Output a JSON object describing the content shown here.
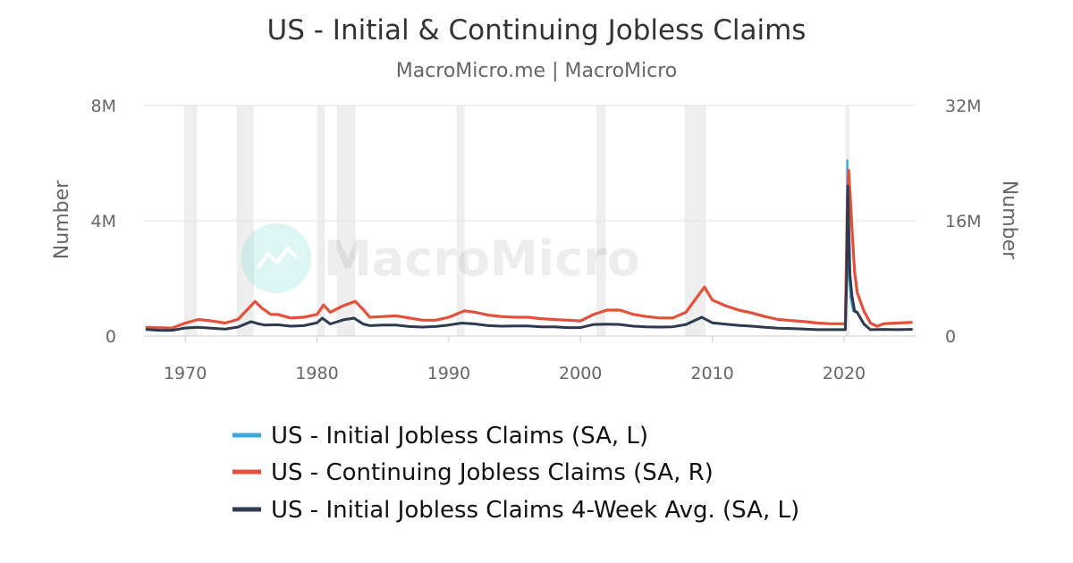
{
  "chart_data": {
    "type": "line",
    "title": "US - Initial & Continuing Jobless Claims",
    "subtitle": "MacroMicro.me | MacroMicro",
    "watermark": "MacroMicro",
    "xlim": [
      1966.8,
      2025.5
    ],
    "x_ticks": [
      1970,
      1980,
      1990,
      2000,
      2010,
      2020
    ],
    "y_left": {
      "label": "Number",
      "ylim": [
        0,
        8000000
      ],
      "ticks": [
        0,
        4000000,
        8000000
      ],
      "tick_labels": [
        "0",
        "4M",
        "8M"
      ]
    },
    "y_right": {
      "label": "Number",
      "ylim": [
        0,
        32000000
      ],
      "ticks": [
        0,
        16000000,
        32000000
      ],
      "tick_labels": [
        "0",
        "16M",
        "32M"
      ]
    },
    "recessions": [
      [
        1969.9,
        1970.9
      ],
      [
        1973.9,
        1975.2
      ],
      [
        1980.0,
        1980.6
      ],
      [
        1981.5,
        1982.9
      ],
      [
        1990.6,
        1991.2
      ],
      [
        2001.2,
        2001.9
      ],
      [
        2007.9,
        2009.5
      ],
      [
        2020.1,
        2020.4
      ]
    ],
    "legend_position": "bottom",
    "series": [
      {
        "name": "US - Initial Jobless Claims (SA, L)",
        "axis": "left",
        "color": "#3da9dc",
        "points": [
          [
            1967.0,
            230000
          ],
          [
            1968.0,
            200000
          ],
          [
            1969.0,
            190000
          ],
          [
            1970.0,
            270000
          ],
          [
            1971.0,
            300000
          ],
          [
            1972.0,
            270000
          ],
          [
            1973.0,
            240000
          ],
          [
            1974.0,
            300000
          ],
          [
            1975.0,
            480000
          ],
          [
            1975.5,
            420000
          ],
          [
            1976.0,
            380000
          ],
          [
            1977.0,
            390000
          ],
          [
            1978.0,
            340000
          ],
          [
            1979.0,
            360000
          ],
          [
            1980.0,
            450000
          ],
          [
            1980.4,
            620000
          ],
          [
            1981.0,
            420000
          ],
          [
            1982.0,
            560000
          ],
          [
            1982.8,
            640000
          ],
          [
            1983.5,
            420000
          ],
          [
            1984.0,
            360000
          ],
          [
            1985.0,
            380000
          ],
          [
            1986.0,
            380000
          ],
          [
            1987.0,
            330000
          ],
          [
            1988.0,
            310000
          ],
          [
            1989.0,
            330000
          ],
          [
            1990.0,
            380000
          ],
          [
            1991.0,
            450000
          ],
          [
            1992.0,
            420000
          ],
          [
            1993.0,
            360000
          ],
          [
            1994.0,
            340000
          ],
          [
            1995.0,
            350000
          ],
          [
            1996.0,
            350000
          ],
          [
            1997.0,
            320000
          ],
          [
            1998.0,
            320000
          ],
          [
            1999.0,
            290000
          ],
          [
            2000.0,
            290000
          ],
          [
            2001.0,
            400000
          ],
          [
            2002.0,
            410000
          ],
          [
            2003.0,
            400000
          ],
          [
            2004.0,
            340000
          ],
          [
            2005.0,
            320000
          ],
          [
            2006.0,
            310000
          ],
          [
            2007.0,
            320000
          ],
          [
            2008.0,
            400000
          ],
          [
            2009.2,
            650000
          ],
          [
            2010.0,
            460000
          ],
          [
            2011.0,
            410000
          ],
          [
            2012.0,
            370000
          ],
          [
            2013.0,
            340000
          ],
          [
            2014.0,
            300000
          ],
          [
            2015.0,
            270000
          ],
          [
            2016.0,
            260000
          ],
          [
            2017.0,
            240000
          ],
          [
            2018.0,
            220000
          ],
          [
            2019.0,
            220000
          ],
          [
            2020.1,
            210000
          ],
          [
            2020.2,
            3300000
          ],
          [
            2020.25,
            6100000
          ],
          [
            2020.3,
            4400000
          ],
          [
            2020.4,
            2000000
          ],
          [
            2020.5,
            1300000
          ],
          [
            2020.7,
            860000
          ],
          [
            2021.0,
            800000
          ],
          [
            2021.5,
            400000
          ],
          [
            2022.0,
            220000
          ],
          [
            2023.0,
            230000
          ],
          [
            2024.0,
            220000
          ],
          [
            2025.2,
            230000
          ]
        ]
      },
      {
        "name": "US - Continuing Jobless Claims (SA, R)",
        "axis": "right",
        "color": "#e4513b",
        "points": [
          [
            1967.0,
            1200000
          ],
          [
            1968.0,
            1150000
          ],
          [
            1969.0,
            1100000
          ],
          [
            1970.0,
            1800000
          ],
          [
            1971.0,
            2300000
          ],
          [
            1972.0,
            2100000
          ],
          [
            1973.0,
            1800000
          ],
          [
            1974.0,
            2300000
          ],
          [
            1975.3,
            4800000
          ],
          [
            1975.8,
            3900000
          ],
          [
            1976.5,
            3000000
          ],
          [
            1977.0,
            3000000
          ],
          [
            1978.0,
            2500000
          ],
          [
            1979.0,
            2600000
          ],
          [
            1980.0,
            3000000
          ],
          [
            1980.5,
            4300000
          ],
          [
            1981.0,
            3300000
          ],
          [
            1982.0,
            4200000
          ],
          [
            1982.9,
            4800000
          ],
          [
            1983.5,
            3700000
          ],
          [
            1984.0,
            2600000
          ],
          [
            1985.0,
            2700000
          ],
          [
            1986.0,
            2800000
          ],
          [
            1987.0,
            2500000
          ],
          [
            1988.0,
            2200000
          ],
          [
            1989.0,
            2200000
          ],
          [
            1990.0,
            2600000
          ],
          [
            1991.2,
            3500000
          ],
          [
            1992.0,
            3300000
          ],
          [
            1993.0,
            2900000
          ],
          [
            1994.0,
            2700000
          ],
          [
            1995.0,
            2600000
          ],
          [
            1996.0,
            2600000
          ],
          [
            1997.0,
            2400000
          ],
          [
            1998.0,
            2300000
          ],
          [
            1999.0,
            2200000
          ],
          [
            2000.0,
            2100000
          ],
          [
            2001.0,
            3000000
          ],
          [
            2002.0,
            3600000
          ],
          [
            2003.0,
            3600000
          ],
          [
            2004.0,
            3000000
          ],
          [
            2005.0,
            2700000
          ],
          [
            2006.0,
            2500000
          ],
          [
            2007.0,
            2500000
          ],
          [
            2008.0,
            3300000
          ],
          [
            2009.4,
            6800000
          ],
          [
            2010.0,
            5000000
          ],
          [
            2011.0,
            4200000
          ],
          [
            2012.0,
            3600000
          ],
          [
            2013.0,
            3200000
          ],
          [
            2014.0,
            2700000
          ],
          [
            2015.0,
            2300000
          ],
          [
            2016.0,
            2150000
          ],
          [
            2017.0,
            2000000
          ],
          [
            2018.0,
            1800000
          ],
          [
            2019.0,
            1700000
          ],
          [
            2020.1,
            1700000
          ],
          [
            2020.25,
            18000000
          ],
          [
            2020.35,
            23000000
          ],
          [
            2020.45,
            20000000
          ],
          [
            2020.6,
            15000000
          ],
          [
            2020.8,
            9000000
          ],
          [
            2021.0,
            6000000
          ],
          [
            2021.5,
            3500000
          ],
          [
            2022.0,
            1800000
          ],
          [
            2022.5,
            1350000
          ],
          [
            2023.0,
            1700000
          ],
          [
            2023.5,
            1750000
          ],
          [
            2024.0,
            1800000
          ],
          [
            2025.2,
            1900000
          ]
        ]
      },
      {
        "name": "US - Initial Jobless Claims 4-Week Avg. (SA, L)",
        "axis": "left",
        "color": "#2e3a4e",
        "points": [
          [
            1967.0,
            230000
          ],
          [
            1968.0,
            200000
          ],
          [
            1969.0,
            195000
          ],
          [
            1970.0,
            280000
          ],
          [
            1971.0,
            300000
          ],
          [
            1972.0,
            270000
          ],
          [
            1973.0,
            240000
          ],
          [
            1974.0,
            310000
          ],
          [
            1975.0,
            500000
          ],
          [
            1975.5,
            430000
          ],
          [
            1976.0,
            380000
          ],
          [
            1977.0,
            390000
          ],
          [
            1978.0,
            340000
          ],
          [
            1979.0,
            360000
          ],
          [
            1980.0,
            460000
          ],
          [
            1980.4,
            620000
          ],
          [
            1981.0,
            420000
          ],
          [
            1982.0,
            560000
          ],
          [
            1982.8,
            620000
          ],
          [
            1983.5,
            420000
          ],
          [
            1984.0,
            360000
          ],
          [
            1985.0,
            380000
          ],
          [
            1986.0,
            380000
          ],
          [
            1987.0,
            330000
          ],
          [
            1988.0,
            310000
          ],
          [
            1989.0,
            330000
          ],
          [
            1990.0,
            380000
          ],
          [
            1991.0,
            450000
          ],
          [
            1992.0,
            420000
          ],
          [
            1993.0,
            360000
          ],
          [
            1994.0,
            340000
          ],
          [
            1995.0,
            350000
          ],
          [
            1996.0,
            350000
          ],
          [
            1997.0,
            320000
          ],
          [
            1998.0,
            320000
          ],
          [
            1999.0,
            290000
          ],
          [
            2000.0,
            290000
          ],
          [
            2001.0,
            400000
          ],
          [
            2002.0,
            410000
          ],
          [
            2003.0,
            400000
          ],
          [
            2004.0,
            340000
          ],
          [
            2005.0,
            320000
          ],
          [
            2006.0,
            310000
          ],
          [
            2007.0,
            320000
          ],
          [
            2008.0,
            400000
          ],
          [
            2009.2,
            650000
          ],
          [
            2010.0,
            460000
          ],
          [
            2011.0,
            410000
          ],
          [
            2012.0,
            370000
          ],
          [
            2013.0,
            340000
          ],
          [
            2014.0,
            300000
          ],
          [
            2015.0,
            270000
          ],
          [
            2016.0,
            260000
          ],
          [
            2017.0,
            240000
          ],
          [
            2018.0,
            220000
          ],
          [
            2019.0,
            220000
          ],
          [
            2020.1,
            220000
          ],
          [
            2020.2,
            2000000
          ],
          [
            2020.28,
            5200000
          ],
          [
            2020.35,
            4000000
          ],
          [
            2020.45,
            2100000
          ],
          [
            2020.6,
            1400000
          ],
          [
            2020.8,
            870000
          ],
          [
            2021.0,
            820000
          ],
          [
            2021.5,
            420000
          ],
          [
            2022.0,
            220000
          ],
          [
            2023.0,
            230000
          ],
          [
            2024.0,
            220000
          ],
          [
            2025.2,
            230000
          ]
        ]
      }
    ]
  }
}
